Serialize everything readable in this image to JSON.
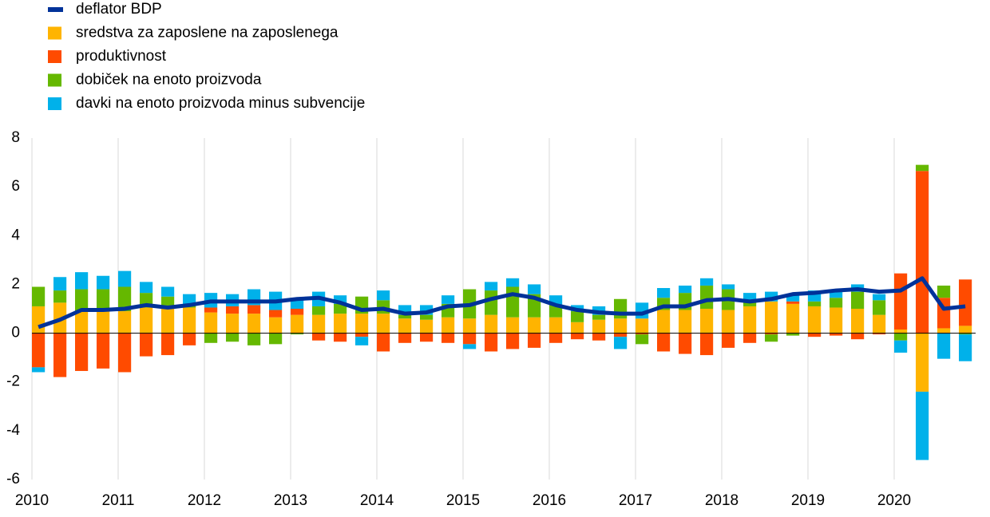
{
  "chart_data": {
    "type": "bar",
    "stacked": true,
    "categories": [
      "2010",
      null,
      null,
      null,
      "2011",
      null,
      null,
      null,
      "2012",
      null,
      null,
      null,
      "2013",
      null,
      null,
      null,
      "2014",
      null,
      null,
      null,
      "2015",
      null,
      null,
      null,
      "2016",
      null,
      null,
      null,
      "2017",
      null,
      null,
      null,
      "2018",
      null,
      null,
      null,
      "2019",
      null,
      null,
      null,
      "2020",
      null,
      null,
      null
    ],
    "series": [
      {
        "name": "deflator BDP",
        "type": "line",
        "color": "#003299",
        "values": [
          0.25,
          0.55,
          0.95,
          0.95,
          1.0,
          1.15,
          1.05,
          1.15,
          1.3,
          1.3,
          1.3,
          1.3,
          1.4,
          1.45,
          1.25,
          0.95,
          1.0,
          0.8,
          0.85,
          1.1,
          1.15,
          1.4,
          1.6,
          1.45,
          1.15,
          0.95,
          0.85,
          0.8,
          0.8,
          1.1,
          1.1,
          1.35,
          1.4,
          1.3,
          1.4,
          1.6,
          1.65,
          1.75,
          1.8,
          1.7,
          1.75,
          2.25,
          1.0,
          1.1
        ]
      },
      {
        "name": "sredstva za zaposlene na zaposlenega",
        "color": "#ffb400",
        "values": [
          1.1,
          1.25,
          0.9,
          0.9,
          0.9,
          1.05,
          1.0,
          1.05,
          0.85,
          0.8,
          0.8,
          0.65,
          0.75,
          0.75,
          0.8,
          0.8,
          0.8,
          0.6,
          0.55,
          0.65,
          0.6,
          0.75,
          0.65,
          0.65,
          0.65,
          0.45,
          0.55,
          0.6,
          0.6,
          0.95,
          0.95,
          1.0,
          0.95,
          1.1,
          1.3,
          1.2,
          1.1,
          1.05,
          1.0,
          0.75,
          0.15,
          -2.4,
          0.2,
          0.3
        ]
      },
      {
        "name": "produktivnost",
        "color": "#ff4b00",
        "values": [
          -1.4,
          -1.8,
          -1.55,
          -1.45,
          -1.6,
          -0.95,
          -0.9,
          -0.5,
          0.2,
          0.3,
          0.35,
          0.3,
          0.25,
          -0.3,
          -0.35,
          -0.15,
          -0.75,
          -0.4,
          -0.35,
          -0.4,
          -0.45,
          -0.75,
          -0.65,
          -0.6,
          -0.4,
          -0.25,
          -0.3,
          -0.15,
          -0.05,
          -0.75,
          -0.85,
          -0.9,
          -0.6,
          -0.4,
          -0.05,
          0.1,
          -0.15,
          -0.1,
          -0.25,
          -0.05,
          2.3,
          6.65,
          1.25,
          1.9
        ]
      },
      {
        "name": "dobiček na enoto proizvoda",
        "color": "#65b800",
        "values": [
          0.8,
          0.5,
          0.9,
          0.9,
          1.0,
          0.6,
          0.5,
          0.15,
          -0.4,
          -0.35,
          -0.5,
          -0.45,
          -0.05,
          0.35,
          0.4,
          0.7,
          0.55,
          0.15,
          0.2,
          0.55,
          1.2,
          1.0,
          1.25,
          0.95,
          0.5,
          0.45,
          0.2,
          0.8,
          -0.4,
          0.5,
          0.7,
          0.95,
          0.85,
          0.2,
          -0.3,
          -0.1,
          0.2,
          0.4,
          0.7,
          0.6,
          -0.3,
          0.25,
          0.5,
          -0.05
        ]
      },
      {
        "name": "davki na enoto proizvoda minus subvencije",
        "color": "#00b1ea",
        "values": [
          -0.2,
          0.55,
          0.7,
          0.55,
          0.65,
          0.45,
          0.4,
          0.4,
          0.6,
          0.5,
          0.65,
          0.75,
          0.4,
          0.6,
          0.35,
          -0.35,
          0.4,
          0.4,
          0.4,
          0.35,
          -0.2,
          0.35,
          0.35,
          0.4,
          0.4,
          0.25,
          0.35,
          -0.5,
          0.65,
          0.4,
          0.3,
          0.3,
          0.2,
          0.35,
          0.4,
          0.3,
          0.45,
          0.3,
          0.3,
          0.25,
          -0.5,
          -2.8,
          -1.05,
          -1.1
        ]
      }
    ],
    "ylim": [
      -6,
      8
    ],
    "yticks": [
      -6,
      -4,
      -2,
      0,
      2,
      4,
      6,
      8
    ],
    "grid": "x"
  }
}
